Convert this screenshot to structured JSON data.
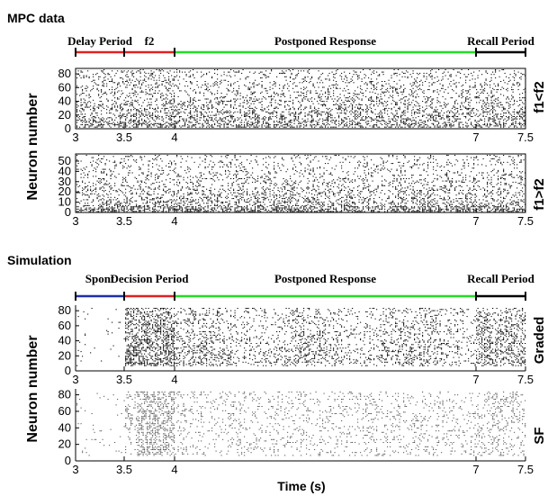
{
  "mpc": {
    "section_title": "MPC data",
    "phases": [
      {
        "label": "Delay Period",
        "color": "#e02020",
        "start": 3,
        "end": 3.5
      },
      {
        "label": "f2",
        "color": "#e02020",
        "start": 3.5,
        "end": 4
      },
      {
        "label": "Postponed Response",
        "color": "#22dd22",
        "start": 4,
        "end": 7
      },
      {
        "label": "Recall Period",
        "color": "#000000",
        "start": 7,
        "end": 7.5
      }
    ],
    "ylabel": "Neuron number",
    "panels": [
      {
        "side_label": "f1<f2",
        "yticks": [
          "0",
          "20",
          "40",
          "60",
          "80"
        ],
        "ymax": 88
      },
      {
        "side_label": "f1>f2",
        "yticks": [
          "0",
          "10",
          "20",
          "30",
          "40",
          "50"
        ],
        "ymax": 57
      }
    ]
  },
  "simulation": {
    "section_title": "Simulation",
    "phases": [
      {
        "label": "Spont",
        "color": "#1f2fa8",
        "start": 3,
        "end": 3.5
      },
      {
        "label": "Decision Period",
        "color": "#e02020",
        "start": 3.5,
        "end": 4
      },
      {
        "label": "Postponed Response",
        "color": "#22dd22",
        "start": 4,
        "end": 7
      },
      {
        "label": "Recall Period",
        "color": "#000000",
        "start": 7,
        "end": 7.5
      }
    ],
    "ylabel": "Neuron number",
    "panels": [
      {
        "side_label": "Graded",
        "yticks": [
          "0",
          "20",
          "40",
          "60",
          "80"
        ],
        "ymax": 85
      },
      {
        "side_label": "SF",
        "yticks": [
          "0",
          "20",
          "40",
          "60",
          "80"
        ],
        "ymax": 85
      }
    ]
  },
  "xticks": [
    "3",
    "3.5",
    "4",
    "7",
    "7.5"
  ],
  "xlabel": "Time (s)"
}
